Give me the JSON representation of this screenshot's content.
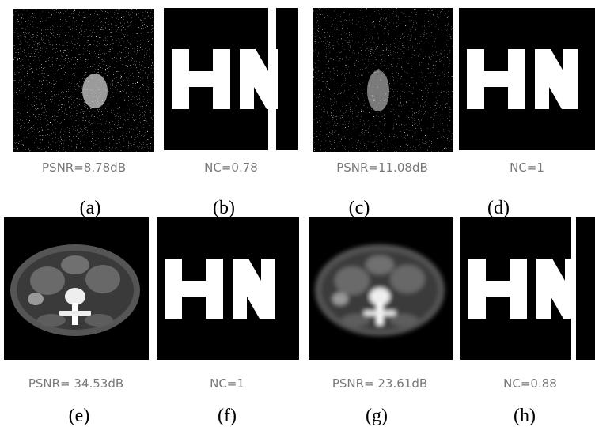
{
  "panels": [
    {
      "caption": "PSNR=8.78dB",
      "label": "(a)"
    },
    {
      "caption": "NC=0.78",
      "label": "(b)"
    },
    {
      "caption": "PSNR=11.08dB",
      "label": "(c)"
    },
    {
      "caption": "NC=1",
      "label": "(d)"
    },
    {
      "caption": "PSNR= 34.53dB",
      "label": "(e)"
    },
    {
      "caption": "NC=1",
      "label": "(f)"
    },
    {
      "caption": "PSNR= 23.61dB",
      "label": "(g)"
    },
    {
      "caption": "NC=0.88",
      "label": "(h)"
    }
  ]
}
